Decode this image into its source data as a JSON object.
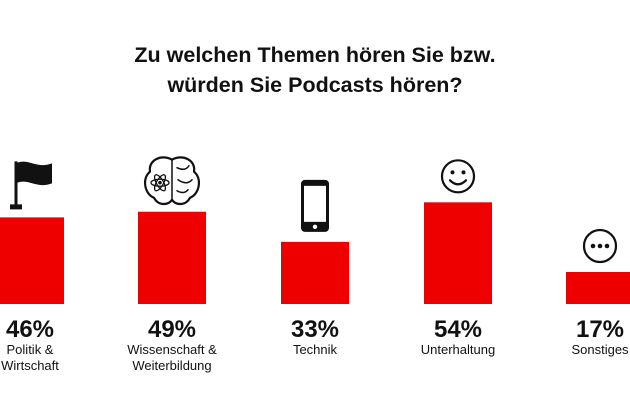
{
  "title": {
    "line1": "Zu welchen Themen hören Sie bzw.",
    "line2": "würden Sie Podcasts hören?"
  },
  "colors": {
    "bar": "#ee0000",
    "text": "#111111",
    "background": "#ffffff"
  },
  "chart_data": {
    "type": "bar",
    "title": "Zu welchen Themen hören Sie bzw. würden Sie Podcasts hören?",
    "categories": [
      "Politik & Wirtschaft",
      "Wissenschaft & Weiterbildung",
      "Technik",
      "Unterhaltung",
      "Sonstiges"
    ],
    "category_lines": [
      [
        "Politik &",
        "Wirtschaft"
      ],
      [
        "Wissenschaft &",
        "Weiterbildung"
      ],
      [
        "Technik"
      ],
      [
        "Unterhaltung"
      ],
      [
        "Sonstiges"
      ]
    ],
    "values": [
      46,
      49,
      33,
      54,
      17
    ],
    "value_labels": [
      "46%",
      "49%",
      "33%",
      "54%",
      "17%"
    ],
    "icons": [
      "flag-icon",
      "brain-icon",
      "smartphone-icon",
      "smiley-icon",
      "more-dots-icon"
    ],
    "unit": "%",
    "ylim": [
      0,
      100
    ],
    "grid": false,
    "legend": "none"
  }
}
